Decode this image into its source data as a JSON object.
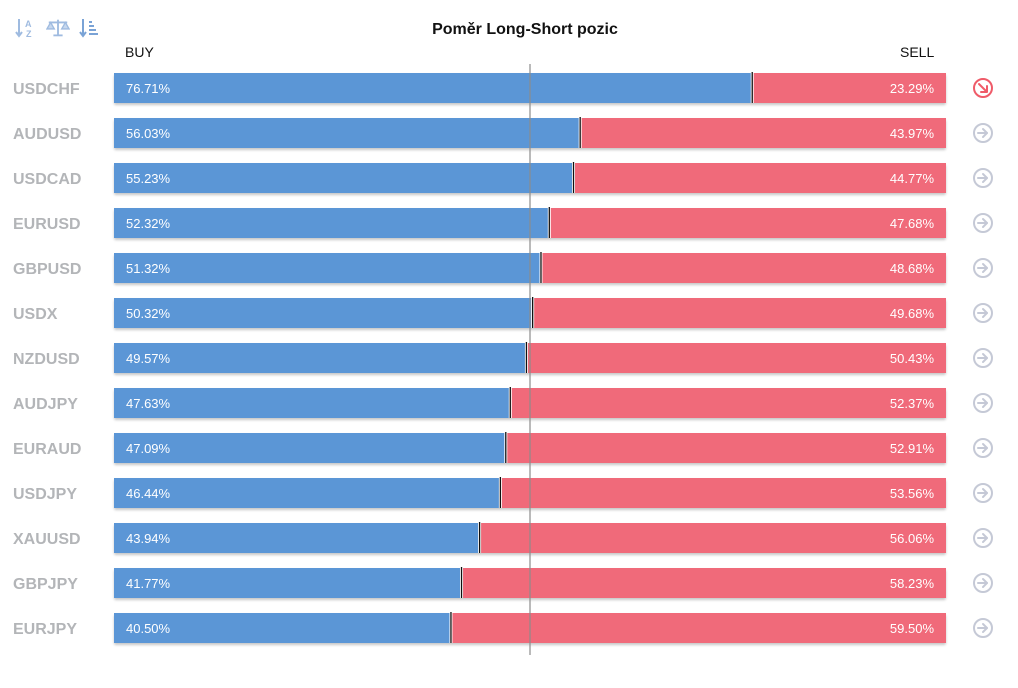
{
  "title": "Poměr Long-Short pozic",
  "headers": {
    "buy": "BUY",
    "sell": "SELL"
  },
  "toolbar": [
    {
      "name": "sort-alphabetical-icon"
    },
    {
      "name": "balance-scale-icon"
    },
    {
      "name": "sort-descending-icon"
    }
  ],
  "colors": {
    "buy": "#5b96d6",
    "sell": "#f06a7a",
    "row_label": "#b3b5b8",
    "arrow_neutral": "#c5c9d6",
    "arrow_active": "#ef5b69"
  },
  "chart_data": {
    "type": "bar",
    "orientation": "horizontal",
    "stacked": true,
    "unit": "%",
    "categories": [
      "USDCHF",
      "AUDUSD",
      "USDCAD",
      "EURUSD",
      "GBPUSD",
      "USDX",
      "NZDUSD",
      "AUDJPY",
      "EURAUD",
      "USDJPY",
      "XAUUSD",
      "GBPJPY",
      "EURJPY"
    ],
    "series": [
      {
        "name": "BUY",
        "values": [
          76.71,
          56.03,
          55.23,
          52.32,
          51.32,
          50.32,
          49.57,
          47.63,
          47.09,
          46.44,
          43.94,
          41.77,
          40.5
        ],
        "labels": [
          "76.71%",
          "56.03%",
          "55.23%",
          "52.32%",
          "51.32%",
          "50.32%",
          "49.57%",
          "47.63%",
          "47.09%",
          "46.44%",
          "43.94%",
          "41.77%",
          "40.50%"
        ]
      },
      {
        "name": "SELL",
        "values": [
          23.29,
          43.97,
          44.77,
          47.68,
          48.68,
          49.68,
          50.43,
          52.37,
          52.91,
          53.56,
          56.06,
          58.23,
          59.5
        ],
        "labels": [
          "23.29%",
          "43.97%",
          "44.77%",
          "47.68%",
          "48.68%",
          "49.68%",
          "50.43%",
          "52.37%",
          "52.91%",
          "53.56%",
          "56.06%",
          "58.23%",
          "59.50%"
        ]
      }
    ],
    "xlim": [
      0,
      100
    ],
    "midline": 50,
    "row_icons": [
      "arrow-down-right-icon",
      "arrow-right-icon",
      "arrow-right-icon",
      "arrow-right-icon",
      "arrow-right-icon",
      "arrow-right-icon",
      "arrow-right-icon",
      "arrow-right-icon",
      "arrow-right-icon",
      "arrow-right-icon",
      "arrow-right-icon",
      "arrow-right-icon",
      "arrow-right-icon"
    ]
  }
}
